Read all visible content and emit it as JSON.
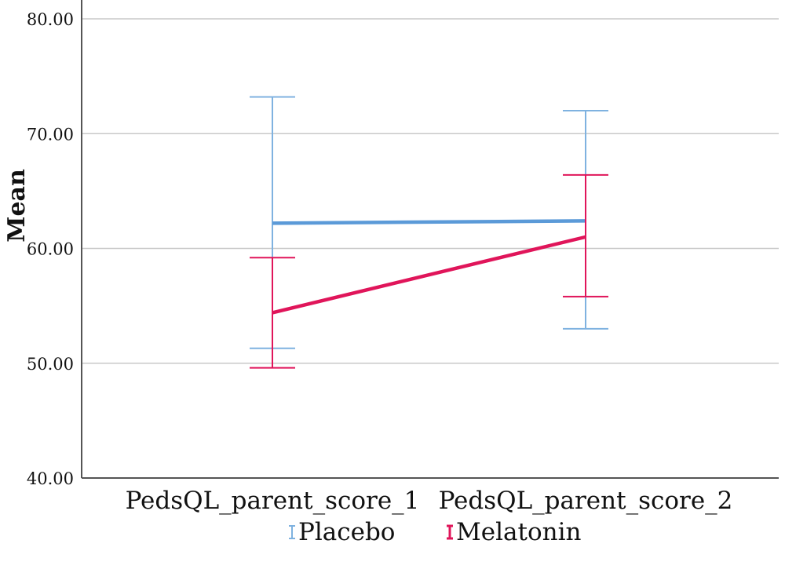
{
  "chart_data": {
    "type": "line",
    "ylabel": "Mean",
    "xlabel": "",
    "ylim": [
      40,
      80
    ],
    "yticks": [
      "40.00",
      "50.00",
      "60.00",
      "70.00",
      "80.00"
    ],
    "categories": [
      "PedsQL_parent_score_1",
      "PedsQL_parent_score_2"
    ],
    "grid": true,
    "legend_position": "bottom",
    "series": [
      {
        "name": "Placebo",
        "color": "#7fb2e0",
        "line_color": "#5b9ad8",
        "values": [
          62.2,
          62.4
        ],
        "ci_low": [
          51.3,
          53.0
        ],
        "ci_high": [
          73.2,
          72.0
        ]
      },
      {
        "name": "Melatonin",
        "color": "#e0155a",
        "line_color": "#e0155a",
        "values": [
          54.4,
          61.0
        ],
        "ci_low": [
          49.6,
          55.8
        ],
        "ci_high": [
          59.2,
          66.4
        ]
      }
    ]
  }
}
